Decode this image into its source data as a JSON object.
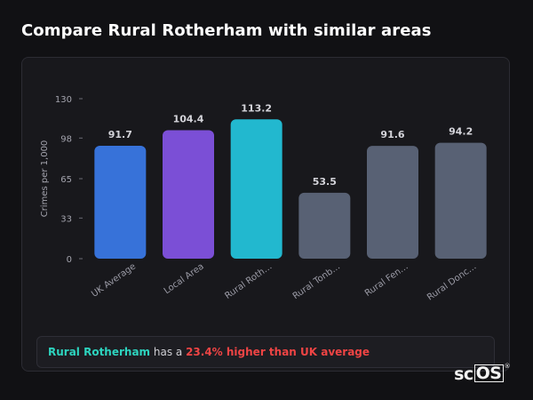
{
  "header": {
    "title": "Compare Rural Rotherham with similar areas"
  },
  "chart_data": {
    "type": "bar",
    "categories": [
      "UK Average",
      "Local Area",
      "Rural Roth…",
      "Rural Tonb…",
      "Rural Fen…",
      "Rural Donc…"
    ],
    "values": [
      91.7,
      104.4,
      113.2,
      53.5,
      91.6,
      94.2
    ],
    "value_labels": [
      "91.7",
      "104.4",
      "113.2",
      "53.5",
      "91.6",
      "94.2"
    ],
    "colors": [
      "#3772d9",
      "#7b4fd6",
      "#22b8cf",
      "#586174",
      "#586174",
      "#586174"
    ],
    "ylabel": "Crimes per 1,000",
    "xlabel": "",
    "ylim": [
      0,
      130
    ],
    "yticks": [
      0,
      33,
      65,
      98,
      130
    ],
    "grid": false,
    "legend": "none"
  },
  "summary": {
    "area_name": "Rural Rotherham",
    "middle_text": " has a ",
    "difference_text": "23.4% higher than UK average"
  },
  "logo": {
    "prefix": "sc",
    "boxed": "OS",
    "mark": "®"
  }
}
